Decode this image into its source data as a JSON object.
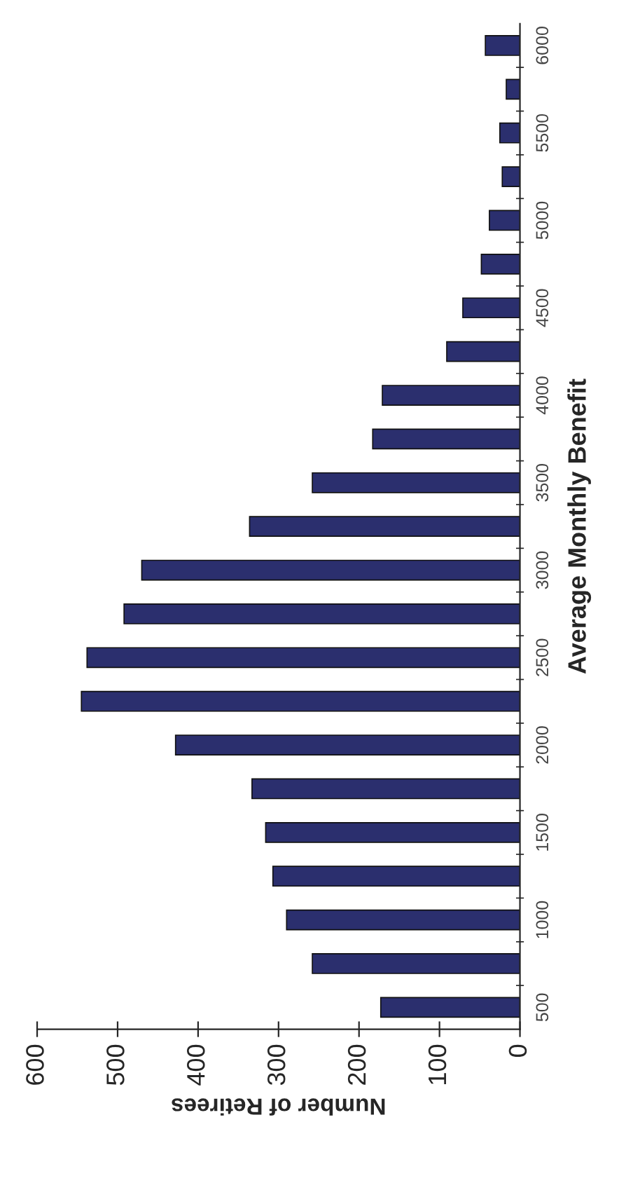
{
  "chart_data": {
    "type": "bar",
    "orientation": "horizontal",
    "xlabel": "Number of Retirees",
    "ylabel": "Average Monthly Benefit",
    "categories": [
      "6000",
      null,
      "5500",
      null,
      "5000",
      null,
      "4500",
      null,
      "4000",
      null,
      "3500",
      null,
      "3000",
      null,
      "2500",
      null,
      "2000",
      null,
      "1500",
      null,
      "1000",
      null,
      "500"
    ],
    "values": [
      43,
      17,
      25,
      22,
      38,
      48,
      71,
      91,
      171,
      183,
      258,
      336,
      470,
      492,
      538,
      545,
      428,
      333,
      316,
      307,
      290,
      258,
      173
    ],
    "color": "#2b2f6e",
    "xlim": [
      600,
      0
    ],
    "xticks": [
      600,
      500,
      400,
      300,
      200,
      100,
      0
    ],
    "grid": false,
    "legend": false
  }
}
